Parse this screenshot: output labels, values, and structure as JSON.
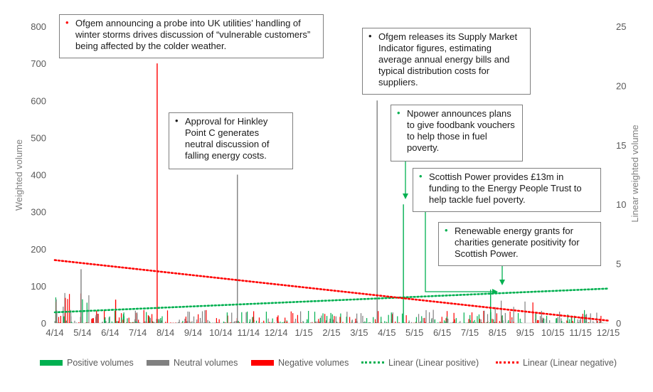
{
  "chart_data": {
    "type": "bar",
    "y_axis_left": {
      "label": "Weighted volume",
      "ticks": [
        "0",
        "100",
        "200",
        "300",
        "400",
        "500",
        "600",
        "700",
        "800"
      ],
      "range": [
        0,
        800
      ]
    },
    "y_axis_right": {
      "label": "Linear weighted volume",
      "ticks": [
        "0",
        "5",
        "10",
        "15",
        "20",
        "25"
      ],
      "range": [
        0,
        25
      ]
    },
    "x_axis": {
      "ticks": [
        "4/14",
        "5/14",
        "6/14",
        "7/14",
        "8/14",
        "9/14",
        "10/14",
        "11/14",
        "12/14",
        "1/15",
        "2/15",
        "3/15",
        "4/15",
        "5/15",
        "6/15",
        "7/15",
        "8/15",
        "9/15",
        "10/15",
        "11/15",
        "12/15"
      ]
    },
    "colors": {
      "positive": "#00b050",
      "neutral": "#808080",
      "negative": "#ff0000",
      "trend_positive": "#00b050",
      "trend_negative": "#ff0000"
    },
    "spikes": [
      {
        "month": 3.7,
        "value": 700,
        "type": "negative"
      },
      {
        "month": 6.6,
        "value": 400,
        "type": "neutral"
      },
      {
        "month": 11.65,
        "value": 600,
        "type": "neutral"
      },
      {
        "month": 12.6,
        "value": 320,
        "type": "positive"
      },
      {
        "month": 15.75,
        "value": 90,
        "type": "positive"
      },
      {
        "month": 0.95,
        "value": 145,
        "type": "neutral"
      },
      {
        "month": 2.2,
        "value": 63,
        "type": "negative"
      }
    ],
    "trend_positive": {
      "start": 0.9,
      "end": 2.9
    },
    "trend_negative": {
      "start": 5.3,
      "end": 0.2
    },
    "legend": [
      "Positive volumes",
      "Neutral volumes",
      "Negative volumes",
      "Linear (Linear positive)",
      "Linear (Linear negative)"
    ],
    "annotations": [
      {
        "text": "Ofgem announcing a probe into UK utilities’ handling of winter storms drives discussion of “vulnerable customers” being affected by the colder weather.",
        "bullet_color": "#ff0000"
      },
      {
        "text": "Approval for Hinkley Point C generates neutral discussion of falling energy costs.",
        "bullet_color": "#000000"
      },
      {
        "text": "Ofgem releases its Supply Market Indicator figures, estimating average annual energy bills and typical distribution costs for suppliers.",
        "bullet_color": "#000000"
      },
      {
        "text": "Npower announces plans to give foodbank vouchers to help those in fuel poverty.",
        "bullet_color": "#00b050"
      },
      {
        "text": "Scottish Power provides £13m in funding to the Energy People Trust to help tackle fuel poverty.",
        "bullet_color": "#00b050"
      },
      {
        "text": "Renewable energy grants for charities generate positivity for Scottish Power.",
        "bullet_color": "#00b050"
      }
    ]
  }
}
